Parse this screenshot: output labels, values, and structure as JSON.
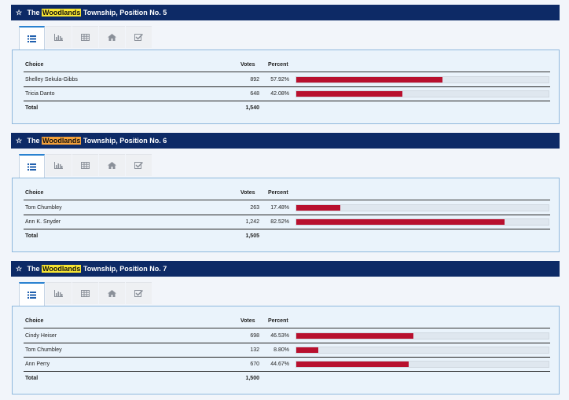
{
  "colors": {
    "header": "#0d2a66",
    "highlight": "#f7e531",
    "highlight_alt": "#f4a13a",
    "bar": "#b8102e",
    "tab_active": "#2a82d0"
  },
  "tabs": [
    "list-icon",
    "bar-chart-icon",
    "table-icon",
    "home-icon",
    "checkbox-icon"
  ],
  "columns": {
    "choice": "Choice",
    "votes": "Votes",
    "percent": "Percent"
  },
  "races": [
    {
      "title_pre": "The",
      "title_hl": "Woodlands",
      "title_post": "Township, Position No. 5",
      "rows": [
        {
          "name": "Shelley Sekula-Gibbs",
          "votes": "892",
          "percent": "57.92%",
          "fraction": 0.5792
        },
        {
          "name": "Tricia Danto",
          "votes": "648",
          "percent": "42.08%",
          "fraction": 0.4208
        }
      ],
      "total_label": "Total",
      "total": "1,540"
    },
    {
      "title_pre": "The",
      "title_hl": "Woodlands",
      "title_post": "Township, Position No. 6",
      "rows": [
        {
          "name": "Tom Chumbley",
          "votes": "263",
          "percent": "17.48%",
          "fraction": 0.1748
        },
        {
          "name": "Ann K. Snyder",
          "votes": "1,242",
          "percent": "82.52%",
          "fraction": 0.8252
        }
      ],
      "total_label": "Total",
      "total": "1,505"
    },
    {
      "title_pre": "The",
      "title_hl": "Woodlands",
      "title_post": "Township, Position No. 7",
      "rows": [
        {
          "name": "Cindy Heiser",
          "votes": "698",
          "percent": "46.53%",
          "fraction": 0.4653
        },
        {
          "name": "Tom Chumbley",
          "votes": "132",
          "percent": "8.80%",
          "fraction": 0.088
        },
        {
          "name": "Ann Perry",
          "votes": "670",
          "percent": "44.67%",
          "fraction": 0.4467
        }
      ],
      "total_label": "Total",
      "total": "1,500"
    }
  ]
}
